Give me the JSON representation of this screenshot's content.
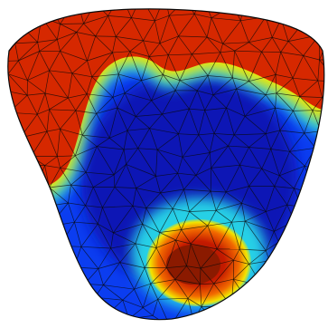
{
  "figure": {
    "background_color": "#ffffff",
    "colormap": {
      "dark_red": "#8b1a00",
      "red": "#d62800",
      "orange": "#f26a00",
      "yellow": "#f2e600",
      "cyan": "#27d0e6",
      "light_blue": "#1b78ff",
      "blue": "#0b3df0",
      "dark_blue": "#0a17b5"
    },
    "mesh_line_color": "#0a0a0a"
  }
}
